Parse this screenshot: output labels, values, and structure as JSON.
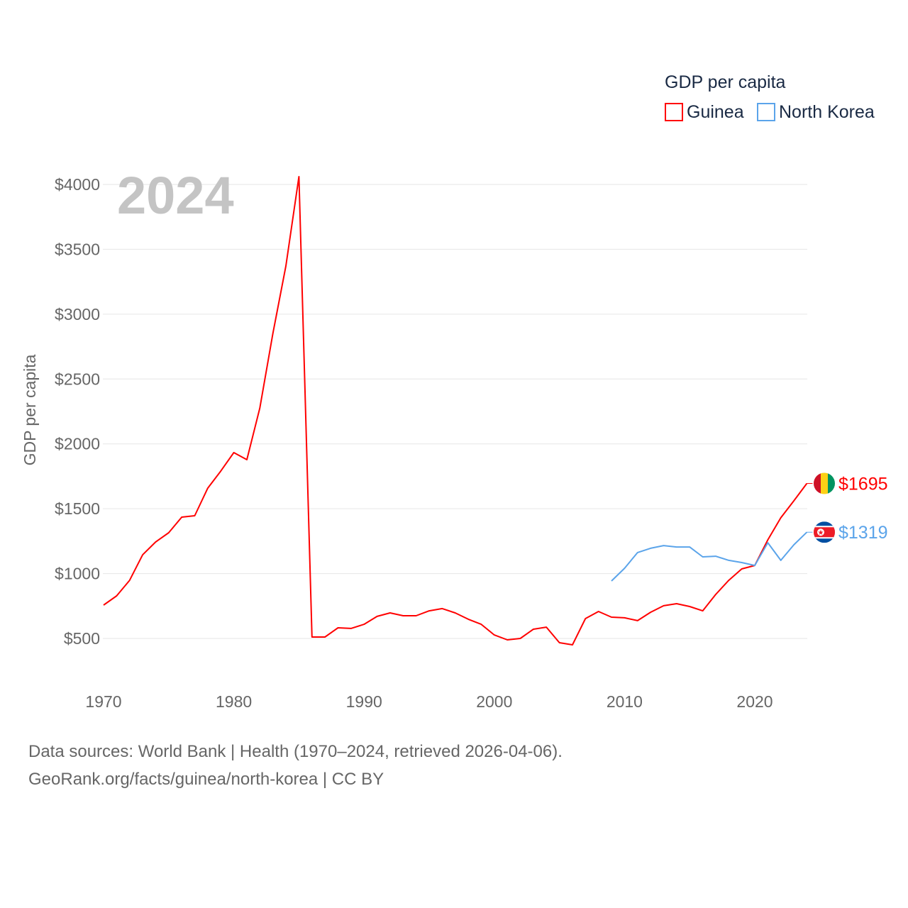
{
  "chart_data": {
    "type": "line",
    "title": "",
    "year_label": "2024",
    "xlabel": "",
    "ylabel": "GDP per capita",
    "legend_title": "GDP per capita",
    "legend_position": "top-right",
    "xlim": [
      1970,
      2024
    ],
    "ylim": [
      500,
      4000
    ],
    "x_ticks": [
      1970,
      1980,
      1990,
      2000,
      2010,
      2020
    ],
    "y_ticks": [
      500,
      1000,
      1500,
      2000,
      2500,
      3000,
      3500,
      4000
    ],
    "y_tick_labels": [
      "$500",
      "$1000",
      "$1500",
      "$2000",
      "$2500",
      "$3000",
      "$3500",
      "$4000"
    ],
    "grid": true,
    "series": [
      {
        "name": "Guinea",
        "color": "#ff0000",
        "end_label": "$1695",
        "x": [
          1970,
          1971,
          1972,
          1973,
          1974,
          1975,
          1976,
          1977,
          1978,
          1979,
          1980,
          1981,
          1982,
          1983,
          1984,
          1985,
          1986,
          1987,
          1988,
          1989,
          1990,
          1991,
          1992,
          1993,
          1994,
          1995,
          1996,
          1997,
          1998,
          1999,
          2000,
          2001,
          2002,
          2003,
          2004,
          2005,
          2006,
          2007,
          2008,
          2009,
          2010,
          2011,
          2012,
          2013,
          2014,
          2015,
          2016,
          2017,
          2018,
          2019,
          2020,
          2021,
          2022,
          2023,
          2024
        ],
        "values": [
          757,
          828,
          948,
          1145,
          1244,
          1315,
          1435,
          1446,
          1659,
          1790,
          1933,
          1878,
          2277,
          2852,
          3371,
          4060,
          511,
          511,
          582,
          577,
          609,
          670,
          697,
          675,
          675,
          713,
          730,
          697,
          648,
          609,
          527,
          489,
          500,
          571,
          587,
          467,
          451,
          653,
          708,
          664,
          659,
          637,
          702,
          752,
          768,
          746,
          713,
          839,
          948,
          1036,
          1063,
          1260,
          1430,
          1561,
          1695
        ]
      },
      {
        "name": "North Korea",
        "color": "#5ba4ea",
        "end_label": "$1319",
        "x": [
          2009,
          2010,
          2011,
          2012,
          2013,
          2014,
          2015,
          2016,
          2017,
          2018,
          2019,
          2020,
          2021,
          2022,
          2023,
          2024
        ],
        "values": [
          943,
          1041,
          1162,
          1195,
          1216,
          1205,
          1205,
          1129,
          1134,
          1102,
          1085,
          1063,
          1238,
          1102,
          1222,
          1319
        ]
      }
    ]
  },
  "footer": {
    "line1": "Data sources: World Bank | Health (1970–2024, retrieved 2026-04-06).",
    "line2": "GeoRank.org/facts/guinea/north-korea | CC BY"
  }
}
